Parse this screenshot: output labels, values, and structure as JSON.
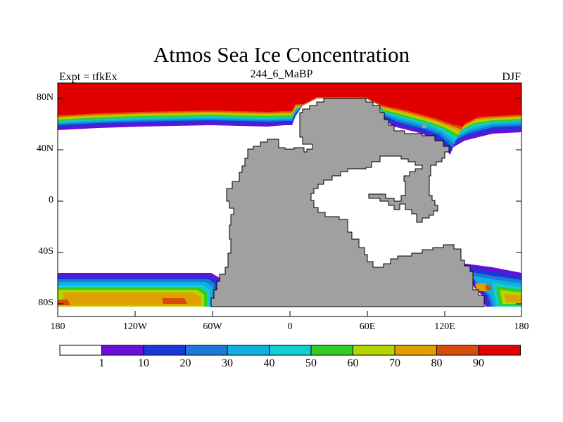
{
  "title": "Atmos Sea Ice Concentration",
  "left_string": "Expt = tfkEx",
  "center_string": "244_6_MaBP",
  "right_string": "DJF",
  "lat_labels": [
    "80N",
    "40N",
    "0",
    "40S",
    "80S"
  ],
  "lon_labels": [
    "180",
    "120W",
    "60W",
    "0",
    "60E",
    "120E",
    "180"
  ],
  "colorbar": {
    "levels": [
      "1",
      "10",
      "20",
      "30",
      "40",
      "50",
      "60",
      "70",
      "80",
      "90"
    ],
    "colors": [
      "#ffffff",
      "#6a0fd8",
      "#1a37d8",
      "#1d7ad8",
      "#11aee0",
      "#11cfcf",
      "#33cc22",
      "#b3d600",
      "#e0a000",
      "#d84c0c",
      "#e00000"
    ]
  },
  "map": {
    "land_color": "#a0a0a0",
    "ice_max_color": "#e00000",
    "open_ocean_color": "#ffffff"
  }
}
